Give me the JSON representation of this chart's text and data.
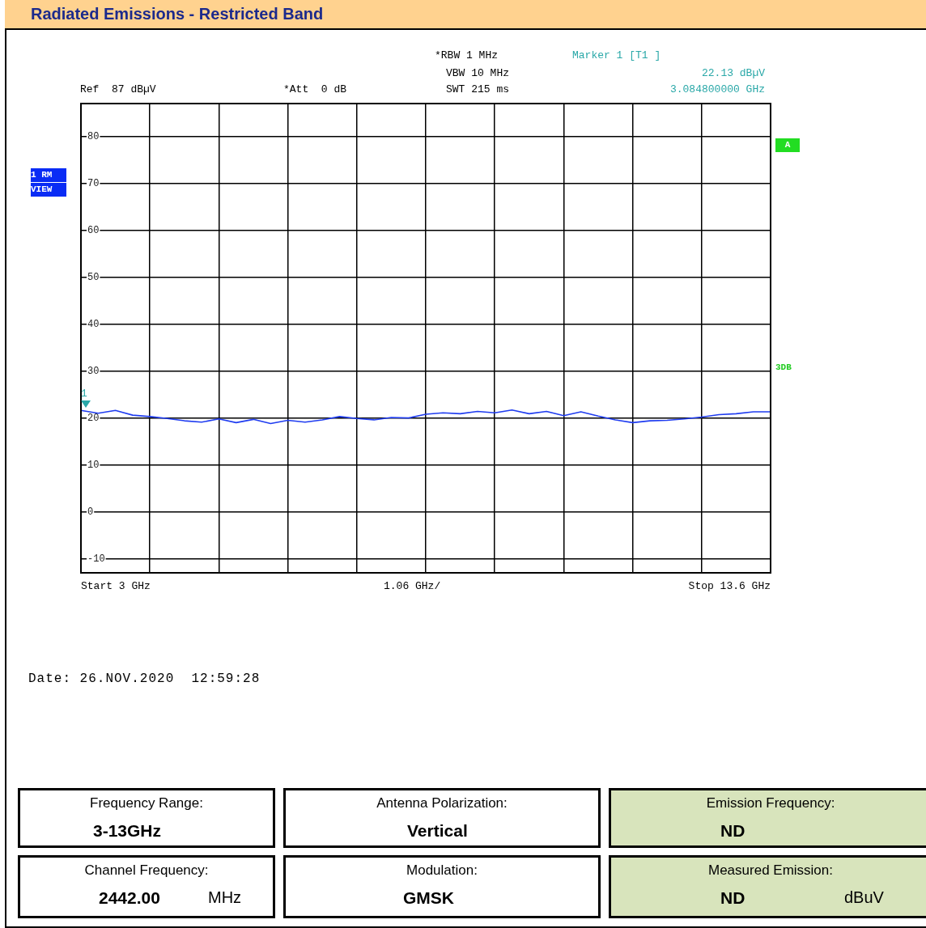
{
  "chart_data": {
    "type": "line",
    "title": "Radiated Emissions - Restricted Band",
    "categories": [
      null,
      null,
      null,
      null,
      null,
      null,
      null,
      null,
      null,
      null,
      null,
      null,
      null,
      null,
      null,
      null,
      null,
      null,
      null,
      null,
      null,
      null,
      null,
      null,
      null,
      null,
      null,
      null,
      null,
      null,
      null,
      null,
      null,
      null,
      null,
      null,
      null,
      null,
      null,
      null,
      null
    ],
    "ylim": [
      -13,
      87
    ],
    "yticks": [
      -10,
      0,
      10,
      20,
      30,
      40,
      50,
      60,
      70,
      80
    ],
    "grid": true,
    "tick_labels": "y",
    "marker": "none",
    "line_style": "solid",
    "series": [
      {
        "color": "#1f3cf0",
        "values": [
          21.6,
          21.0,
          21.6,
          20.6,
          20.3,
          19.9,
          19.4,
          19.1,
          19.8,
          19.0,
          19.7,
          18.8,
          19.5,
          19.1,
          19.6,
          20.3,
          19.9,
          19.6,
          20.1,
          20.0,
          20.8,
          21.1,
          20.9,
          21.4,
          21.1,
          21.7,
          20.9,
          21.4,
          20.5,
          21.3,
          20.4,
          19.6,
          19.0,
          19.4,
          19.5,
          19.8,
          20.2,
          20.7,
          20.9,
          21.3,
          21.3
        ]
      }
    ],
    "annotations": [
      "*RBW 1 MHz",
      "VBW 10 MHz",
      "SWT 215 ms",
      "Marker 1 [T1 ]",
      "22.13 dBµV",
      "3.084800000 GHz",
      "Ref  87 dBµV",
      "*Att  0 dB",
      "1 RM",
      "VIEW",
      "A",
      "3DB",
      "Start 3 GHz",
      "1.06 GHz/",
      "Stop 13.6 GHz",
      "Date: 26.NOV.2020  12:59:28",
      {
        "text": "1",
        "y": 22.13
      },
      "Frequency Range:",
      "3-13GHz",
      "Antenna Polarization:",
      "Vertical",
      "Emission Frequency:",
      "ND",
      "Channel Frequency:",
      "2442.00",
      "MHz",
      "Modulation:",
      "GMSK",
      "Measured Emission:",
      "ND",
      "dBuV"
    ]
  }
}
